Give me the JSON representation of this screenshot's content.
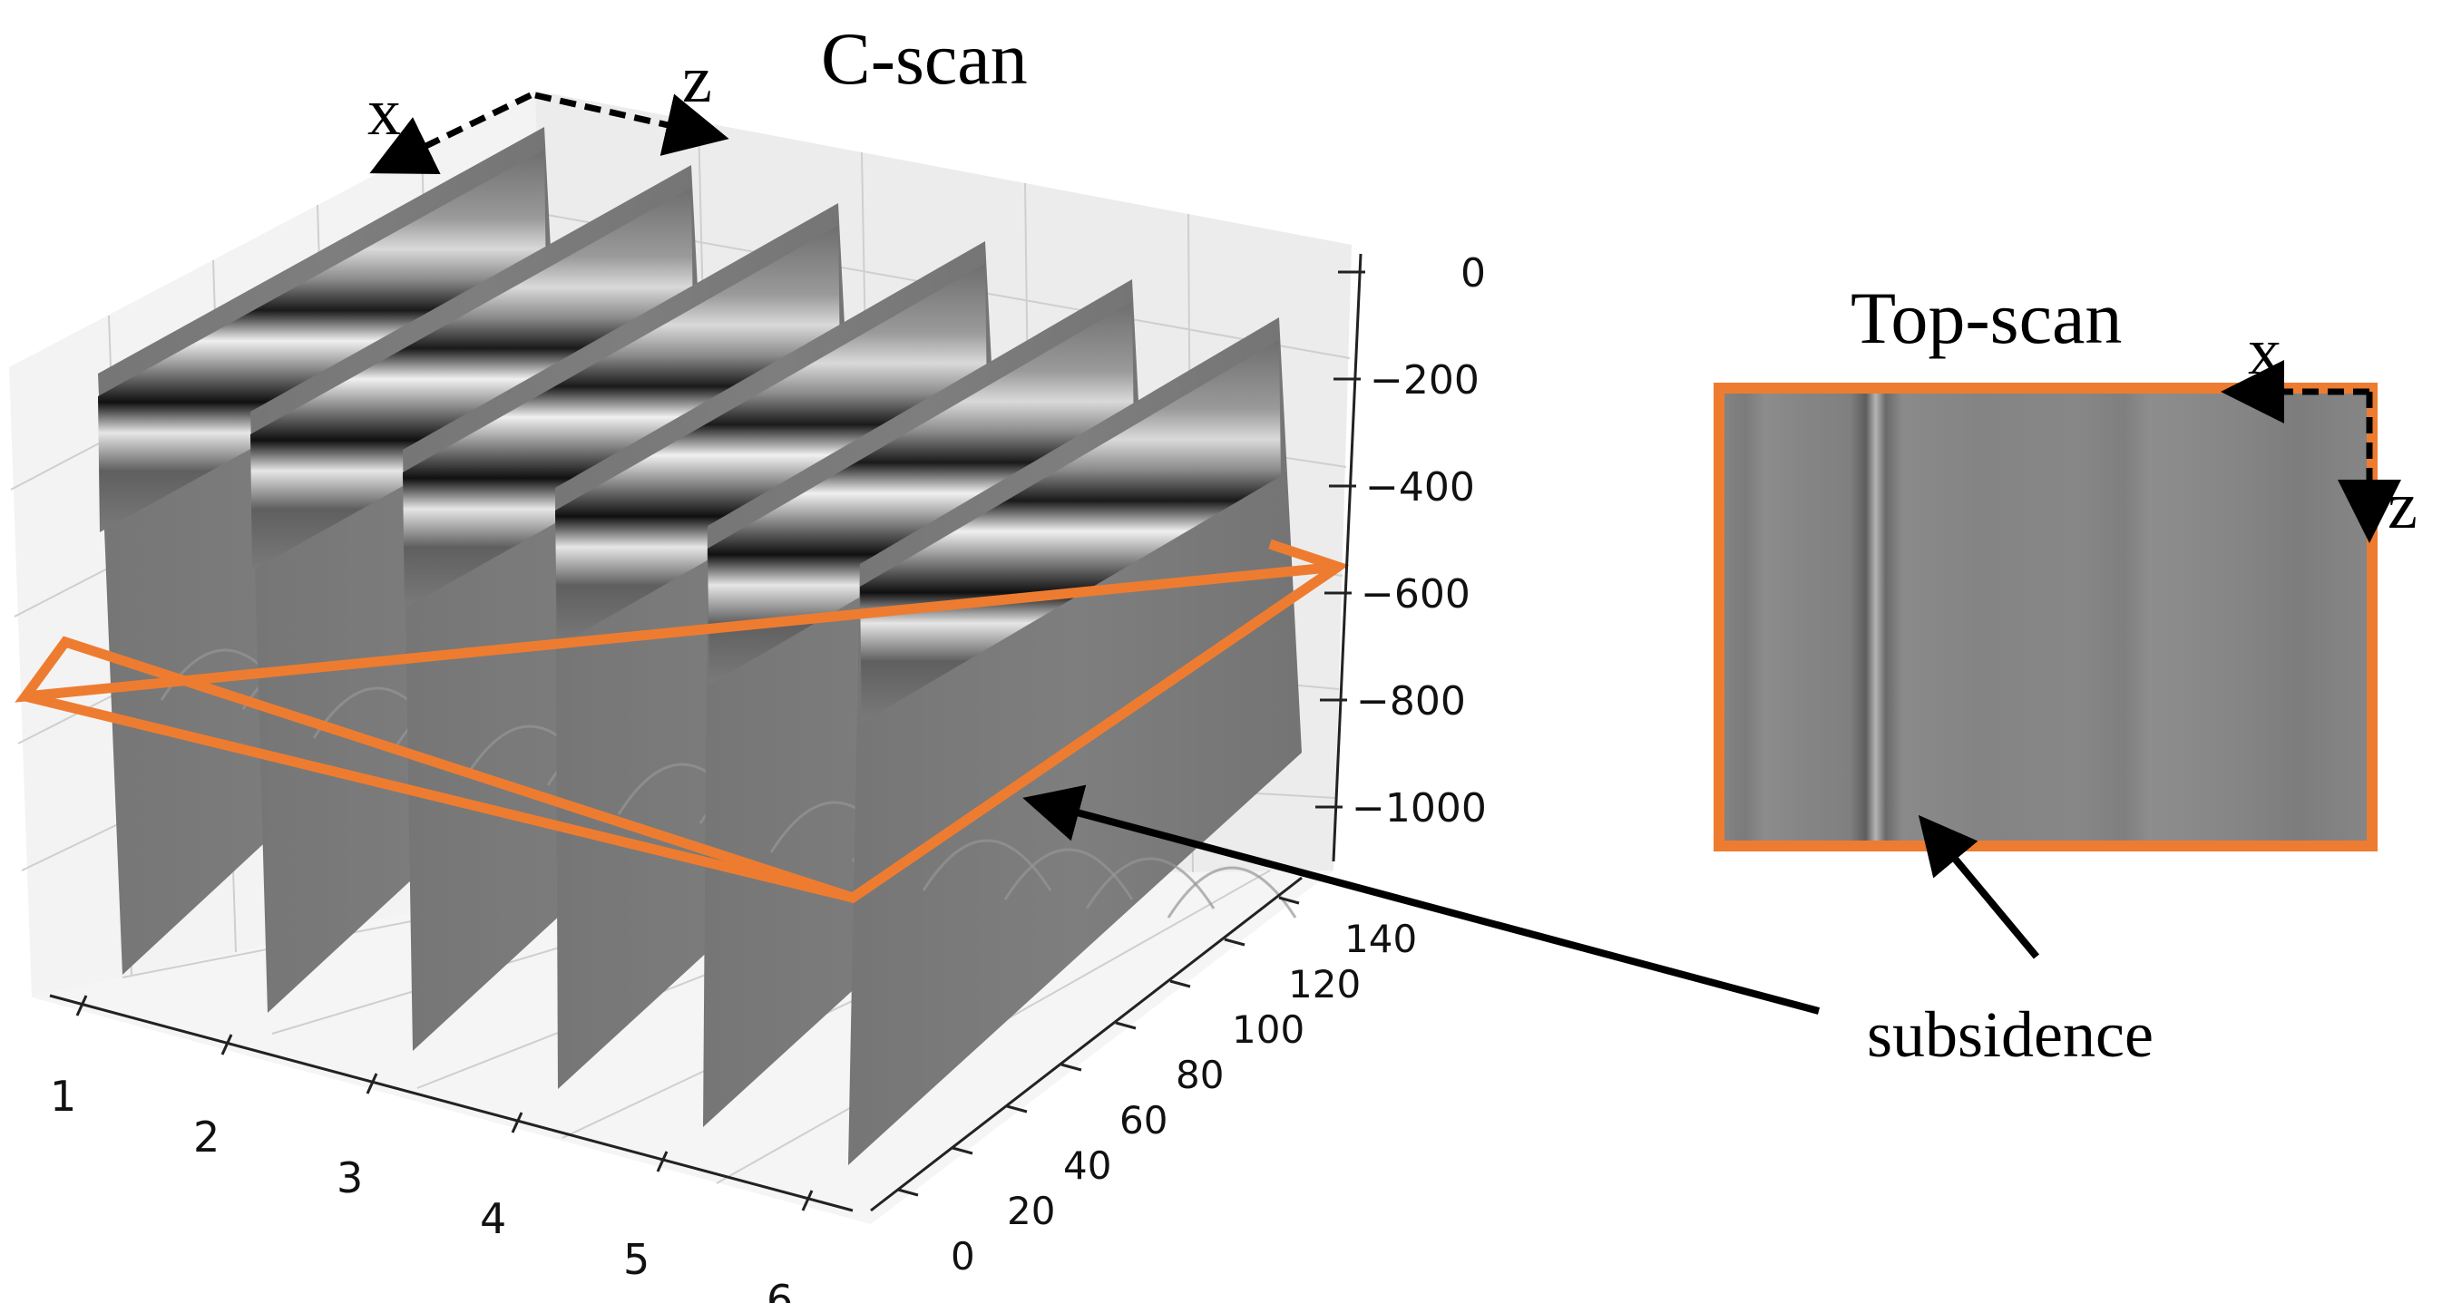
{
  "cscan": {
    "title": "C-scan",
    "axis_x_letter": "x",
    "axis_z_letter": "z",
    "depth_ticks": [
      "0",
      "−200",
      "−400",
      "−600",
      "−800",
      "−1000"
    ],
    "bscan_ticks": [
      "1",
      "2",
      "3",
      "4",
      "5",
      "6"
    ],
    "length_ticks": [
      "0",
      "20",
      "40",
      "60",
      "80",
      "100",
      "120",
      "140"
    ]
  },
  "topscan": {
    "title": "Top-scan",
    "axis_x_letter": "x",
    "axis_z_letter": "z"
  },
  "annotation": {
    "label": "subsidence"
  },
  "colors": {
    "slice_outline": "#ee7c30",
    "radargram_gray": "#7b7b7b",
    "arrow": "#000000"
  }
}
